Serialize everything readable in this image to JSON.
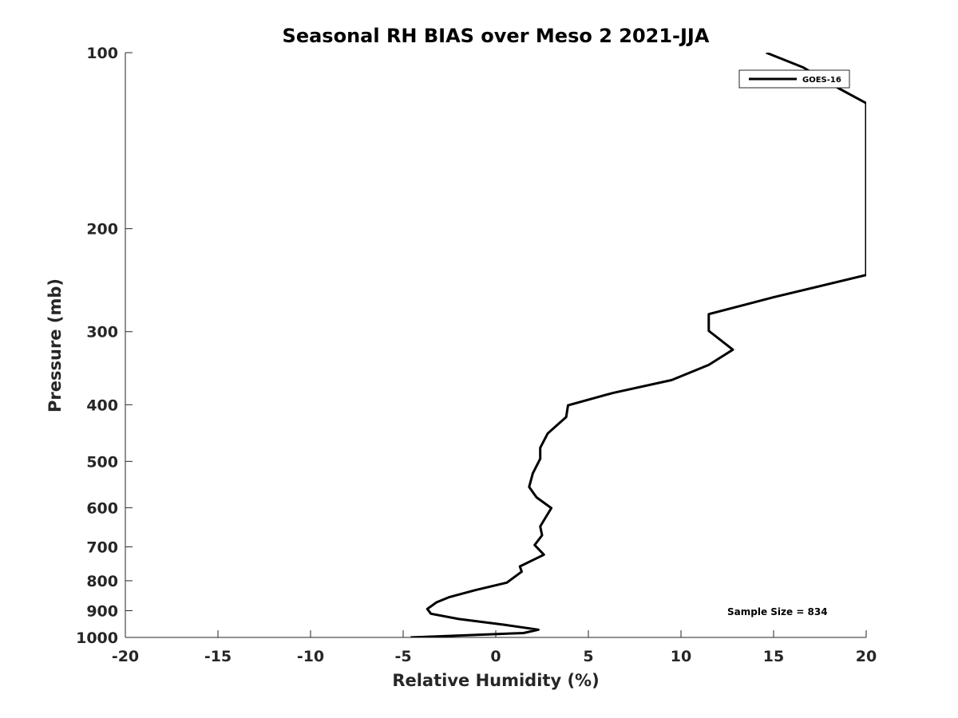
{
  "chart_data": {
    "type": "line",
    "title": "Seasonal RH BIAS over Meso 2  2021-JJA",
    "xlabel": "Relative Humidity (%)",
    "ylabel": "Pressure (mb)",
    "xlim": [
      -20,
      20
    ],
    "ylim": [
      100,
      1000
    ],
    "y_scale": "log",
    "y_reversed": true,
    "x_ticks": [
      -20,
      -15,
      -10,
      -5,
      0,
      5,
      10,
      15,
      20
    ],
    "x_tick_labels": [
      "-20",
      "-15",
      "-10",
      "-5",
      "0",
      "5",
      "10",
      "15",
      "20"
    ],
    "y_ticks": [
      100,
      200,
      300,
      400,
      500,
      600,
      700,
      800,
      900,
      1000
    ],
    "y_tick_labels": [
      "100",
      "200",
      "300",
      "400",
      "500",
      "600",
      "700",
      "800",
      "900",
      "1000"
    ],
    "grid": false,
    "legend_position": "top-right",
    "series": [
      {
        "name": "GOES-16",
        "color": "#000000",
        "points": [
          [
            14.6,
            100
          ],
          [
            16.6,
            106
          ],
          [
            18.5,
            115
          ],
          [
            20.0,
            122
          ],
          [
            20.0,
            240
          ],
          [
            15.0,
            262
          ],
          [
            11.5,
            280
          ],
          [
            11.5,
            299
          ],
          [
            12.8,
            322
          ],
          [
            11.5,
            342
          ],
          [
            9.5,
            363
          ],
          [
            6.3,
            382
          ],
          [
            3.9,
            401
          ],
          [
            3.8,
            420
          ],
          [
            2.8,
            448
          ],
          [
            2.4,
            474
          ],
          [
            2.4,
            495
          ],
          [
            2.0,
            524
          ],
          [
            1.8,
            553
          ],
          [
            2.2,
            576
          ],
          [
            3.0,
            601
          ],
          [
            2.7,
            623
          ],
          [
            2.4,
            646
          ],
          [
            2.5,
            669
          ],
          [
            2.1,
            695
          ],
          [
            2.6,
            722
          ],
          [
            1.3,
            756
          ],
          [
            1.4,
            772
          ],
          [
            0.6,
            806
          ],
          [
            -1.1,
            830
          ],
          [
            -2.5,
            853
          ],
          [
            -3.2,
            871
          ],
          [
            -3.7,
            894
          ],
          [
            -3.5,
            911
          ],
          [
            -2.0,
            930
          ],
          [
            0.5,
            952
          ],
          [
            2.3,
            970
          ],
          [
            1.5,
            983
          ],
          [
            -4.6,
            1000
          ]
        ]
      }
    ],
    "annotations": [
      "Sample Size = 834"
    ]
  },
  "legend": {
    "entries": [
      "GOES-16"
    ]
  },
  "colors": {
    "line": "#000000",
    "axis": "#262626",
    "background": "#ffffff"
  }
}
